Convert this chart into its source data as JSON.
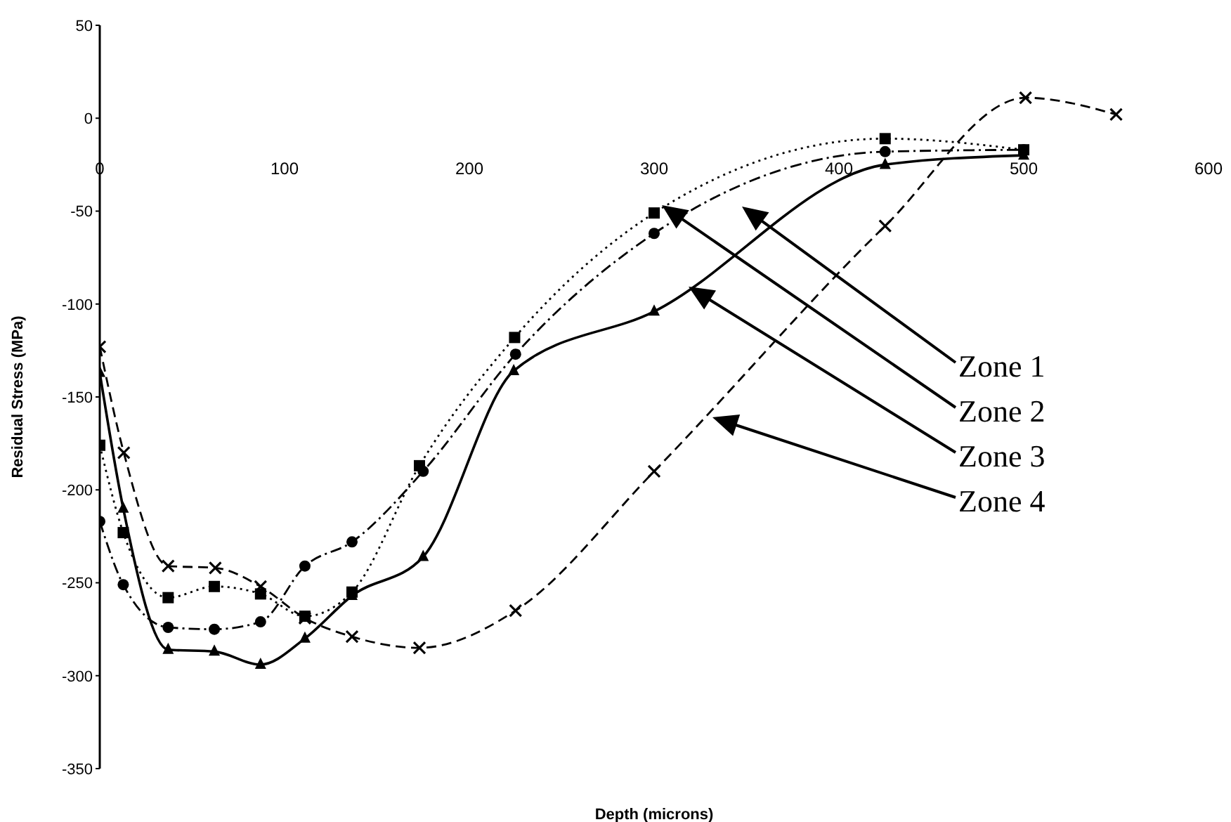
{
  "chart_data": {
    "type": "line",
    "xlabel": "Depth (microns)",
    "ylabel": "Residual Stress (MPa)",
    "xlim": [
      0,
      600
    ],
    "xticks": [
      0,
      100,
      200,
      300,
      400,
      500,
      600
    ],
    "ylim": [
      -350,
      50
    ],
    "yticks": [
      50,
      0,
      -50,
      -100,
      -150,
      -200,
      -250,
      -300,
      -350
    ],
    "grid": false,
    "legend": false,
    "annotations": [
      "Zone 1",
      "Zone 2",
      "Zone 3",
      "Zone 4"
    ],
    "series": [
      {
        "color": "#000000",
        "marker": "circle",
        "line_style": "dashdot",
        "x": [
          0,
          12.7,
          37,
          62,
          87,
          111,
          136.5,
          175,
          225,
          300,
          425,
          500
        ],
        "values": [
          -217,
          -251,
          -274,
          -275,
          -271,
          -241,
          -228,
          -190,
          -127,
          -62,
          -18,
          -17
        ]
      },
      {
        "color": "#000000",
        "marker": "square",
        "line_style": "dotted",
        "x": [
          0,
          12.7,
          37,
          62,
          87,
          111,
          136.5,
          173,
          224.5,
          300,
          425,
          500
        ],
        "values": [
          -176,
          -223,
          -258,
          -252,
          -256,
          -268,
          -255,
          -187,
          -118,
          -51,
          -11,
          -17
        ]
      },
      {
        "color": "#000000",
        "marker": "triangle",
        "line_style": "solid",
        "x": [
          0,
          12.7,
          37,
          62,
          87,
          111,
          136.5,
          175,
          224,
          300,
          425,
          500
        ],
        "values": [
          -137,
          -210,
          -286,
          -287,
          -294,
          -280,
          -257,
          -236,
          -136,
          -104,
          -25,
          -20
        ]
      },
      {
        "color": "#000000",
        "marker": "cross",
        "line_style": "dashed",
        "x": [
          0,
          13,
          37,
          62.5,
          87,
          111,
          136.5,
          173,
          225,
          300,
          425,
          501,
          550
        ],
        "values": [
          -123,
          -180,
          -241,
          -242,
          -252,
          -269,
          -279,
          -285,
          -265,
          -190,
          -58,
          11,
          2
        ]
      }
    ]
  }
}
